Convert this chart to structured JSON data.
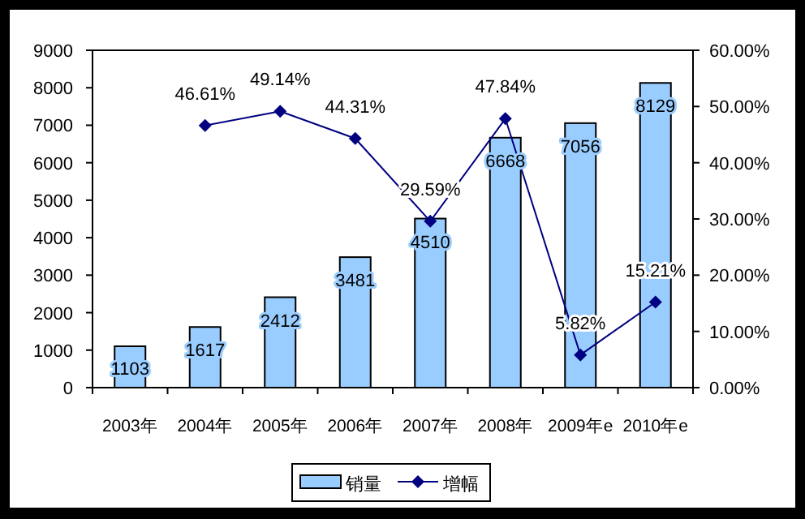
{
  "chart_data": {
    "type": "bar",
    "categories": [
      "2003年",
      "2004年",
      "2005年",
      "2006年",
      "2007年",
      "2008年",
      "2009年e",
      "2010年e"
    ],
    "series": [
      {
        "name": "销量",
        "color": "#99ccff",
        "values": [
          1103,
          1617,
          2412,
          3481,
          4510,
          6668,
          7056,
          8129
        ],
        "value_labels": [
          "1103",
          "1617",
          "2412",
          "3481",
          "4510",
          "6668",
          "7056",
          "8129"
        ]
      },
      {
        "name": "增幅",
        "type": "line",
        "axis": "y2",
        "color": "#000080",
        "marker": "diamond",
        "values": [
          null,
          46.61,
          49.14,
          44.31,
          29.59,
          47.84,
          5.82,
          15.21
        ],
        "value_labels": [
          null,
          "46.61%",
          "49.14%",
          "44.31%",
          "29.59%",
          "47.84%",
          "5.82%",
          "15.21%"
        ]
      }
    ],
    "ylim": [
      0,
      9000
    ],
    "yticks": [
      0,
      1000,
      2000,
      3000,
      4000,
      5000,
      6000,
      7000,
      8000,
      9000
    ],
    "y2lim": [
      0,
      60
    ],
    "y2ticks": [
      {
        "value": 0,
        "label": "0.00%"
      },
      {
        "value": 10,
        "label": "10.00%"
      },
      {
        "value": 20,
        "label": "20.00%"
      },
      {
        "value": 30,
        "label": "30.00%"
      },
      {
        "value": 40,
        "label": "40.00%"
      },
      {
        "value": 50,
        "label": "50.00%"
      },
      {
        "value": 60,
        "label": "60.00%"
      }
    ],
    "legend": "bottom"
  }
}
